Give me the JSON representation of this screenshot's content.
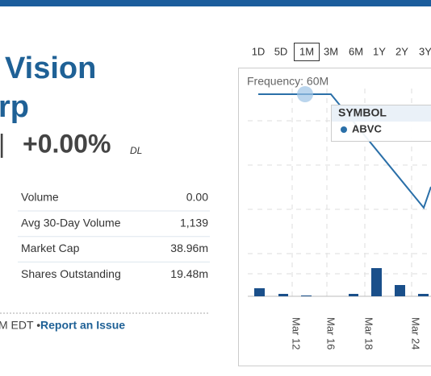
{
  "quote": {
    "name_line1": "Vision",
    "name_line2": "rp",
    "separator": "|",
    "change": "+0.00%",
    "market": "DL"
  },
  "stats": {
    "rows": [
      [
        "Volume",
        "0.00"
      ],
      [
        "Avg 30-Day Volume",
        "1,139"
      ],
      [
        "Market Cap",
        "38.96m"
      ],
      [
        "Shares Outstanding",
        "19.48m"
      ]
    ]
  },
  "footer": {
    "time": "M EDT •",
    "link": "Report an Issue"
  },
  "chart_widget": {
    "ranges": [
      "1D",
      "5D",
      "1M",
      "3M",
      "6M",
      "1Y",
      "2Y",
      "3Y"
    ],
    "active_range": "1M",
    "frequency": "Frequency: 60M",
    "tooltip": {
      "header": "SYMBOL",
      "symbol": "ABVC"
    },
    "x_labels": [
      "Mar 12",
      "Mar 16",
      "Mar 18",
      "Mar 24"
    ]
  }
}
